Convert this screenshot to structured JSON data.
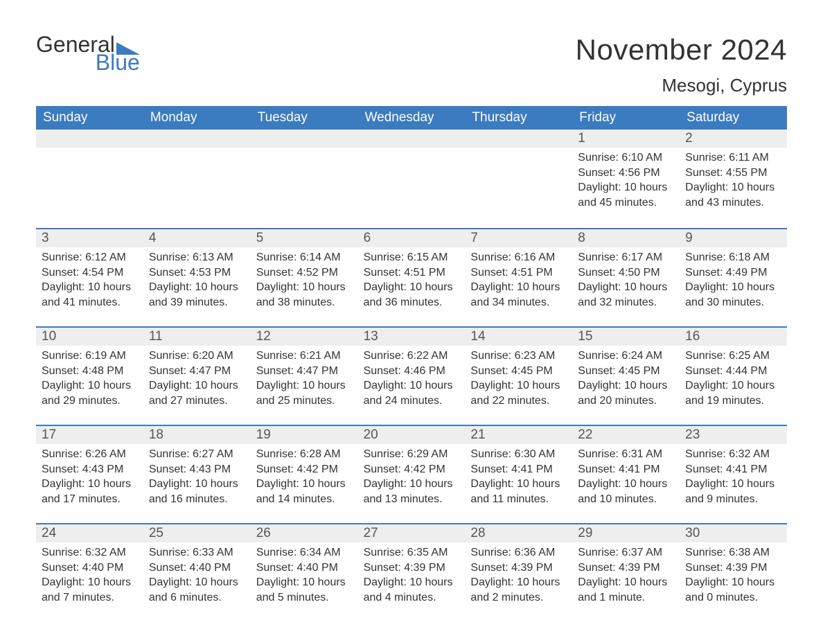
{
  "brand": {
    "part1": "General",
    "part2": "Blue",
    "triangle_color": "#3b7bbf"
  },
  "title": "November 2024",
  "location": "Mesogi, Cyprus",
  "colors": {
    "header_bg": "#3b7bbf",
    "header_text": "#ffffff",
    "daynum_bg": "#eeeeee",
    "body_text": "#333333",
    "rule": "#3b7bbf"
  },
  "fonts": {
    "title_size_pt": 42,
    "location_size_pt": 26,
    "dow_size_pt": 19,
    "body_size_pt": 16
  },
  "days_of_week": [
    "Sunday",
    "Monday",
    "Tuesday",
    "Wednesday",
    "Thursday",
    "Friday",
    "Saturday"
  ],
  "leading_blanks": 5,
  "days": [
    {
      "n": 1,
      "sunrise": "6:10 AM",
      "sunset": "4:56 PM",
      "daylight": "10 hours and 45 minutes."
    },
    {
      "n": 2,
      "sunrise": "6:11 AM",
      "sunset": "4:55 PM",
      "daylight": "10 hours and 43 minutes."
    },
    {
      "n": 3,
      "sunrise": "6:12 AM",
      "sunset": "4:54 PM",
      "daylight": "10 hours and 41 minutes."
    },
    {
      "n": 4,
      "sunrise": "6:13 AM",
      "sunset": "4:53 PM",
      "daylight": "10 hours and 39 minutes."
    },
    {
      "n": 5,
      "sunrise": "6:14 AM",
      "sunset": "4:52 PM",
      "daylight": "10 hours and 38 minutes."
    },
    {
      "n": 6,
      "sunrise": "6:15 AM",
      "sunset": "4:51 PM",
      "daylight": "10 hours and 36 minutes."
    },
    {
      "n": 7,
      "sunrise": "6:16 AM",
      "sunset": "4:51 PM",
      "daylight": "10 hours and 34 minutes."
    },
    {
      "n": 8,
      "sunrise": "6:17 AM",
      "sunset": "4:50 PM",
      "daylight": "10 hours and 32 minutes."
    },
    {
      "n": 9,
      "sunrise": "6:18 AM",
      "sunset": "4:49 PM",
      "daylight": "10 hours and 30 minutes."
    },
    {
      "n": 10,
      "sunrise": "6:19 AM",
      "sunset": "4:48 PM",
      "daylight": "10 hours and 29 minutes."
    },
    {
      "n": 11,
      "sunrise": "6:20 AM",
      "sunset": "4:47 PM",
      "daylight": "10 hours and 27 minutes."
    },
    {
      "n": 12,
      "sunrise": "6:21 AM",
      "sunset": "4:47 PM",
      "daylight": "10 hours and 25 minutes."
    },
    {
      "n": 13,
      "sunrise": "6:22 AM",
      "sunset": "4:46 PM",
      "daylight": "10 hours and 24 minutes."
    },
    {
      "n": 14,
      "sunrise": "6:23 AM",
      "sunset": "4:45 PM",
      "daylight": "10 hours and 22 minutes."
    },
    {
      "n": 15,
      "sunrise": "6:24 AM",
      "sunset": "4:45 PM",
      "daylight": "10 hours and 20 minutes."
    },
    {
      "n": 16,
      "sunrise": "6:25 AM",
      "sunset": "4:44 PM",
      "daylight": "10 hours and 19 minutes."
    },
    {
      "n": 17,
      "sunrise": "6:26 AM",
      "sunset": "4:43 PM",
      "daylight": "10 hours and 17 minutes."
    },
    {
      "n": 18,
      "sunrise": "6:27 AM",
      "sunset": "4:43 PM",
      "daylight": "10 hours and 16 minutes."
    },
    {
      "n": 19,
      "sunrise": "6:28 AM",
      "sunset": "4:42 PM",
      "daylight": "10 hours and 14 minutes."
    },
    {
      "n": 20,
      "sunrise": "6:29 AM",
      "sunset": "4:42 PM",
      "daylight": "10 hours and 13 minutes."
    },
    {
      "n": 21,
      "sunrise": "6:30 AM",
      "sunset": "4:41 PM",
      "daylight": "10 hours and 11 minutes."
    },
    {
      "n": 22,
      "sunrise": "6:31 AM",
      "sunset": "4:41 PM",
      "daylight": "10 hours and 10 minutes."
    },
    {
      "n": 23,
      "sunrise": "6:32 AM",
      "sunset": "4:41 PM",
      "daylight": "10 hours and 9 minutes."
    },
    {
      "n": 24,
      "sunrise": "6:32 AM",
      "sunset": "4:40 PM",
      "daylight": "10 hours and 7 minutes."
    },
    {
      "n": 25,
      "sunrise": "6:33 AM",
      "sunset": "4:40 PM",
      "daylight": "10 hours and 6 minutes."
    },
    {
      "n": 26,
      "sunrise": "6:34 AM",
      "sunset": "4:40 PM",
      "daylight": "10 hours and 5 minutes."
    },
    {
      "n": 27,
      "sunrise": "6:35 AM",
      "sunset": "4:39 PM",
      "daylight": "10 hours and 4 minutes."
    },
    {
      "n": 28,
      "sunrise": "6:36 AM",
      "sunset": "4:39 PM",
      "daylight": "10 hours and 2 minutes."
    },
    {
      "n": 29,
      "sunrise": "6:37 AM",
      "sunset": "4:39 PM",
      "daylight": "10 hours and 1 minute."
    },
    {
      "n": 30,
      "sunrise": "6:38 AM",
      "sunset": "4:39 PM",
      "daylight": "10 hours and 0 minutes."
    }
  ],
  "labels": {
    "sunrise": "Sunrise: ",
    "sunset": "Sunset: ",
    "daylight": "Daylight: "
  }
}
